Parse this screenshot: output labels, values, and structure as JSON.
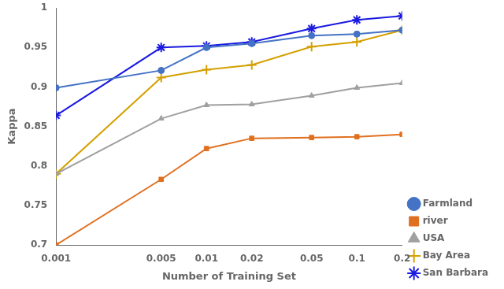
{
  "chart_data": {
    "type": "line",
    "xlabel": "Number of Training Set",
    "ylabel": "Kappa",
    "x": [
      0.001,
      0.005,
      0.01,
      0.02,
      0.05,
      0.1,
      0.2
    ],
    "series": [
      {
        "name": "Farmland",
        "color": "#4472C4",
        "marker": "circle",
        "values": [
          0.899,
          0.921,
          0.95,
          0.955,
          0.965,
          0.967,
          0.972
        ]
      },
      {
        "name": "river",
        "color": "#E07020",
        "marker": "square",
        "values": [
          0.7,
          0.783,
          0.822,
          0.835,
          0.836,
          0.837,
          0.84
        ]
      },
      {
        "name": "USA",
        "color": "#A0A0A0",
        "marker": "triangle",
        "values": [
          0.79,
          0.86,
          0.877,
          0.878,
          0.889,
          0.899,
          0.905
        ]
      },
      {
        "name": "Bay Area",
        "color": "#D4A000",
        "marker": "cross",
        "values": [
          0.79,
          0.912,
          0.922,
          0.928,
          0.951,
          0.957,
          0.972
        ]
      },
      {
        "name": "San Barbara",
        "color": "#1A1AE0",
        "marker": "star",
        "values": [
          0.864,
          0.95,
          0.952,
          0.957,
          0.974,
          0.985,
          0.99
        ]
      }
    ],
    "log": "x",
    "xlim": [
      0.001,
      0.2
    ],
    "xticks": [
      0.001,
      0.005,
      0.01,
      0.02,
      0.05,
      0.1,
      0.2
    ],
    "ylim": [
      0.7,
      1
    ],
    "yticks": [
      0.7,
      0.75,
      0.8,
      0.85,
      0.9,
      0.95,
      1
    ],
    "grid": false,
    "legend": "lower right"
  }
}
